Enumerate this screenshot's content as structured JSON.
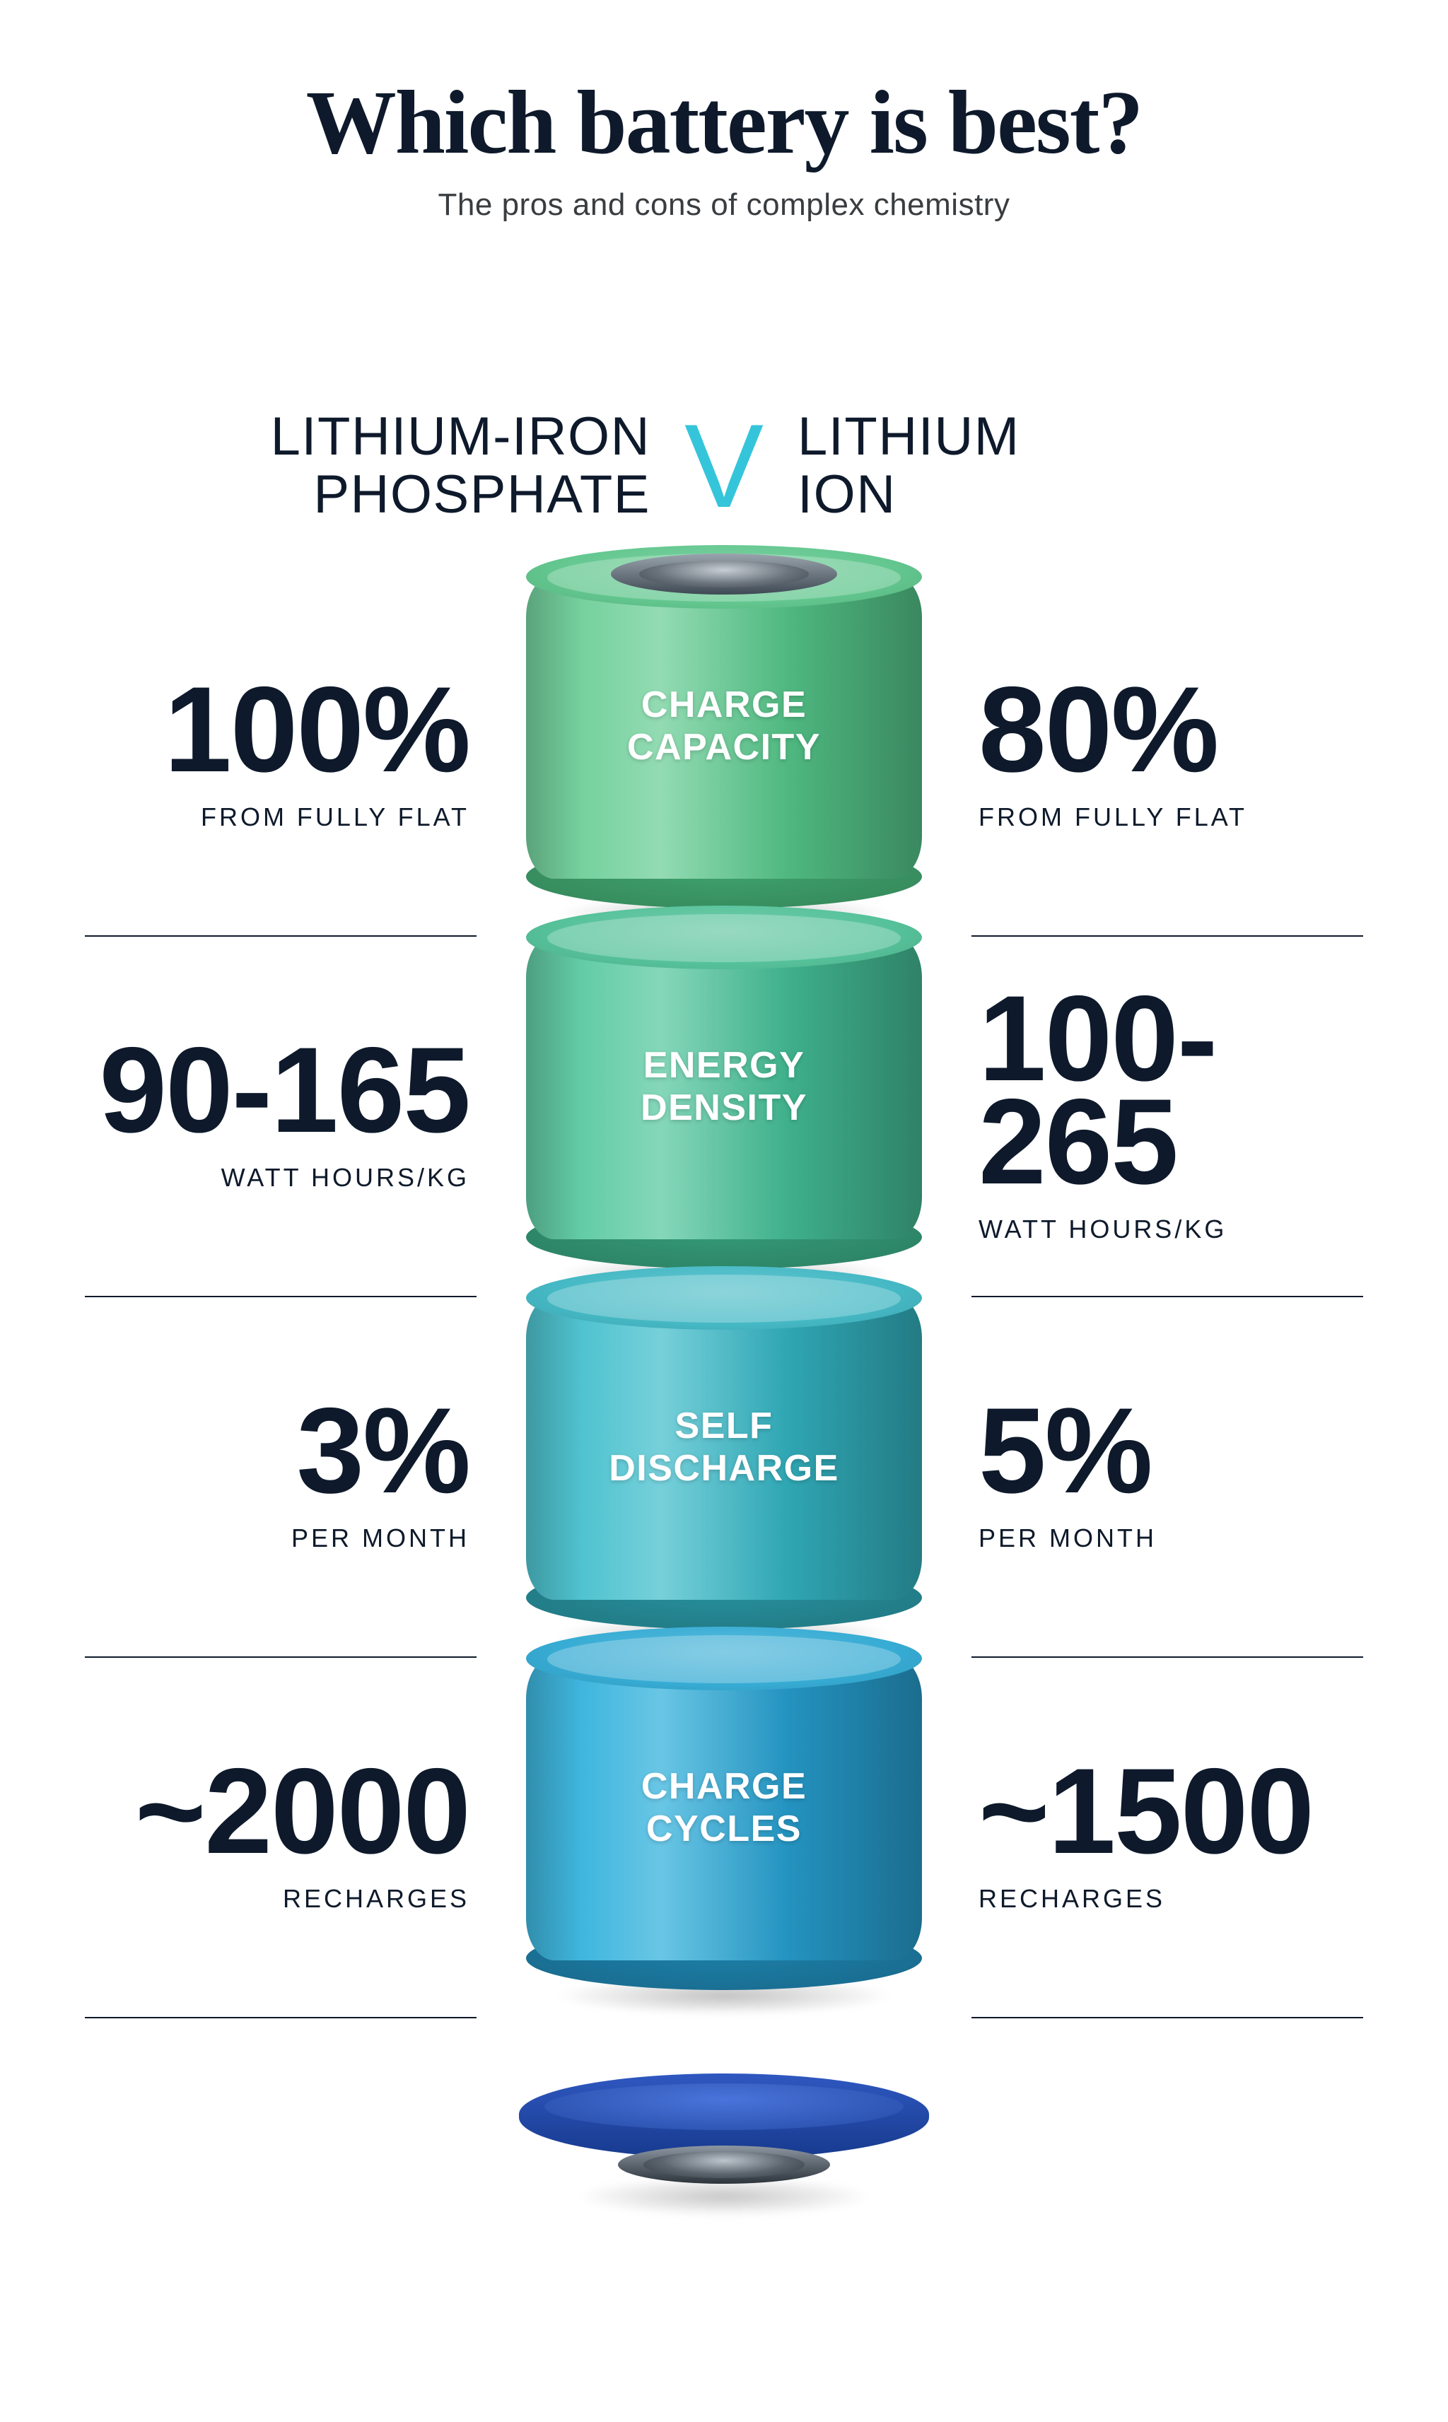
{
  "header": {
    "title": "Which battery is best?",
    "title_color": "#0e1a2b",
    "title_fontsize": 128,
    "subtitle": "The pros and cons of complex chemistry",
    "subtitle_color": "#3a3d40",
    "subtitle_fontsize": 44
  },
  "versus": {
    "left_line1": "LITHIUM-IRON",
    "left_line2": "PHOSPHATE",
    "right_line1": "LITHIUM",
    "right_line2": "ION",
    "v_label": "V",
    "side_fontsize": 76,
    "side_color": "#0e1a2b",
    "v_fontsize": 168,
    "v_color": "#35c5da"
  },
  "layout": {
    "background": "#ffffff",
    "divider_color": "#0e1a2b",
    "stat_value_fontsize": 172,
    "stat_sub_fontsize": 36,
    "seg_label_fontsize": 52,
    "segment_width": 560,
    "segment_height": 430
  },
  "segments": [
    {
      "metric_line1": "CHARGE",
      "metric_line2": "CAPACITY",
      "left_value": "100%",
      "left_sub": "FROM FULLY FLAT",
      "right_value": "80%",
      "right_sub": "FROM FULLY FLAT",
      "body_gradient_from": "#75d19e",
      "body_gradient_to": "#4fb880",
      "top_color": "#63c78f",
      "bot_color": "#3fa26d",
      "inner_highlight": "#ffffff"
    },
    {
      "metric_line1": "ENERGY",
      "metric_line2": "DENSITY",
      "left_value": "90-165",
      "left_sub": "WATT HOURS/KG",
      "right_value": "100-265",
      "right_sub": "WATT HOURS/KG",
      "body_gradient_from": "#63cca7",
      "body_gradient_to": "#3fb08b",
      "top_color": "#56c29a",
      "bot_color": "#349a77",
      "inner_highlight": "#ffffff"
    },
    {
      "metric_line1": "SELF",
      "metric_line2": "DISCHARGE",
      "left_value": "3%",
      "left_sub": "PER MONTH",
      "right_value": "5%",
      "right_sub": "PER MONTH",
      "body_gradient_from": "#4fc3cf",
      "body_gradient_to": "#2fa6b3",
      "top_color": "#45b9c5",
      "bot_color": "#27909c",
      "inner_highlight": "#ffffff"
    },
    {
      "metric_line1": "CHARGE",
      "metric_line2": "CYCLES",
      "left_value": "~2000",
      "left_sub": "RECHARGES",
      "right_value": "~1500",
      "right_sub": "RECHARGES",
      "body_gradient_from": "#3fb6de",
      "body_gradient_to": "#2493c0",
      "top_color": "#37acd4",
      "bot_color": "#1d7fa8",
      "inner_highlight": "#ffffff"
    }
  ],
  "base": {
    "outer_from": "#2f58c0",
    "outer_to": "#173a8e",
    "inner_from": "#4a74db",
    "inner_to": "#244aa5"
  }
}
